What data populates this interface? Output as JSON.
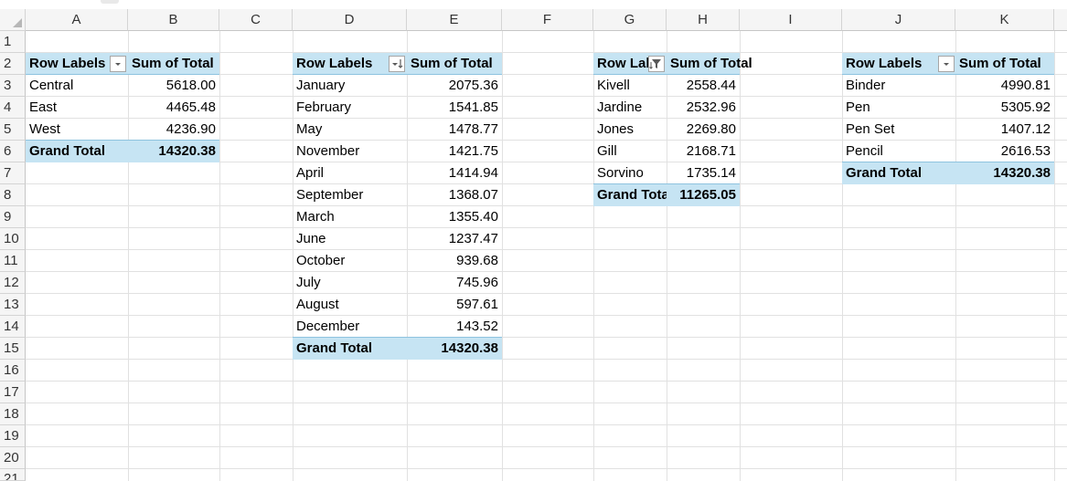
{
  "columns": [
    "A",
    "B",
    "C",
    "D",
    "E",
    "F",
    "G",
    "H",
    "I",
    "J",
    "K"
  ],
  "rows": [
    "1",
    "2",
    "3",
    "4",
    "5",
    "6",
    "7",
    "8",
    "9",
    "10",
    "11",
    "12",
    "13",
    "14",
    "15",
    "16",
    "17",
    "18",
    "19",
    "20",
    "21"
  ],
  "pivot_region": {
    "header_row": "Row Labels",
    "header_value": "Sum of Total",
    "rows": [
      {
        "label": "Central",
        "value": "5618.00"
      },
      {
        "label": "East",
        "value": "4465.48"
      },
      {
        "label": "West",
        "value": "4236.90"
      }
    ],
    "total_label": "Grand Total",
    "total_value": "14320.38"
  },
  "pivot_month": {
    "header_row": "Row Labels",
    "header_value": "Sum of Total",
    "rows": [
      {
        "label": "January",
        "value": "2075.36"
      },
      {
        "label": "February",
        "value": "1541.85"
      },
      {
        "label": "May",
        "value": "1478.77"
      },
      {
        "label": "November",
        "value": "1421.75"
      },
      {
        "label": "April",
        "value": "1414.94"
      },
      {
        "label": "September",
        "value": "1368.07"
      },
      {
        "label": "March",
        "value": "1355.40"
      },
      {
        "label": "June",
        "value": "1237.47"
      },
      {
        "label": "October",
        "value": "939.68"
      },
      {
        "label": "July",
        "value": "745.96"
      },
      {
        "label": "August",
        "value": "597.61"
      },
      {
        "label": "December",
        "value": "143.52"
      }
    ],
    "total_label": "Grand Total",
    "total_value": "14320.38"
  },
  "pivot_rep": {
    "header_row": "Row Lab",
    "header_value": "Sum of Total",
    "rows": [
      {
        "label": "Kivell",
        "value": "2558.44"
      },
      {
        "label": "Jardine",
        "value": "2532.96"
      },
      {
        "label": "Jones",
        "value": "2269.80"
      },
      {
        "label": "Gill",
        "value": "2168.71"
      },
      {
        "label": "Sorvino",
        "value": "1735.14"
      }
    ],
    "total_label": "Grand Tota",
    "total_value": "11265.05"
  },
  "pivot_item": {
    "header_row": "Row Labels",
    "header_value": "Sum of Total",
    "rows": [
      {
        "label": "Binder",
        "value": "4990.81"
      },
      {
        "label": "Pen",
        "value": "5305.92"
      },
      {
        "label": "Pen Set",
        "value": "1407.12"
      },
      {
        "label": "Pencil",
        "value": "2616.53"
      }
    ],
    "total_label": "Grand Total",
    "total_value": "14320.38"
  },
  "colors": {
    "highlight": "#c6e4f3",
    "grid": "#e1e1e1",
    "header_bg": "#f5f5f5"
  },
  "icons": {
    "sort_filter": "chevron-down-icon",
    "sort_desc": "sort-descending-icon",
    "filter_applied": "filter-icon"
  }
}
